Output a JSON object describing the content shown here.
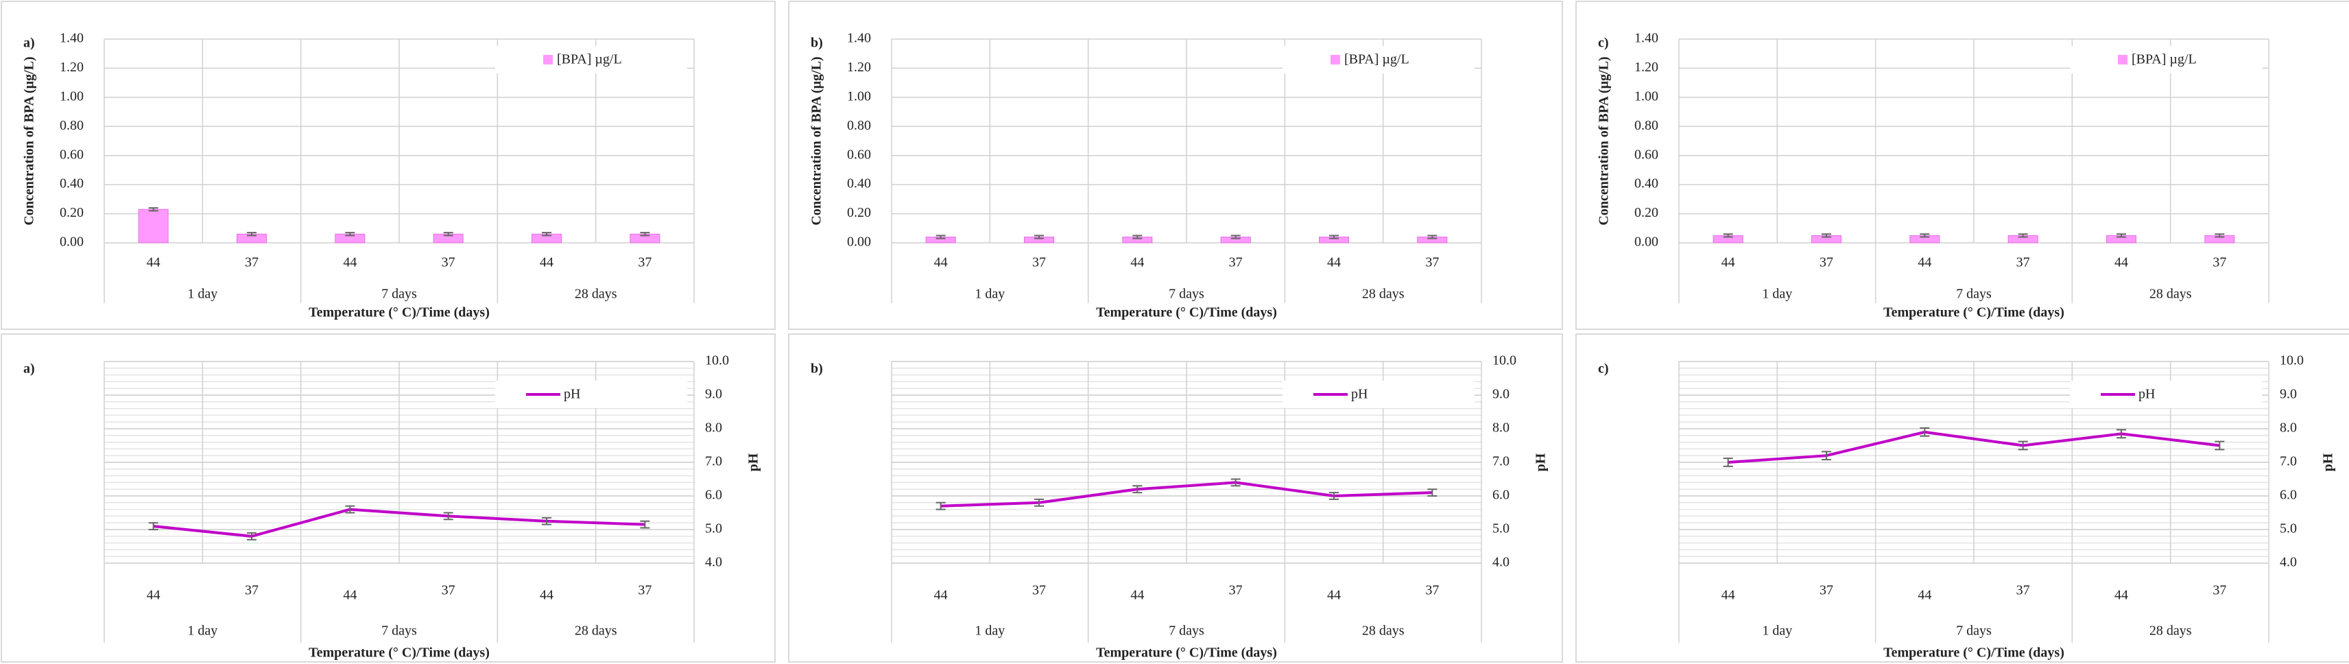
{
  "chart_data": [
    {
      "type": "bar",
      "panel_label": "a)",
      "y_label": "Concentration of BPA (µg/L)",
      "x_label": "Temperature (° C)/Time (days)",
      "categories": [
        "44",
        "37",
        "44",
        "37",
        "44",
        "37"
      ],
      "groups": [
        "1 day",
        "7 days",
        "28 days"
      ],
      "series": [
        {
          "name": "[BPA] µg/L",
          "color": "#ff99ff",
          "values": [
            0.23,
            0.06,
            0.06,
            0.06,
            0.06,
            0.06
          ],
          "errors": [
            0.01,
            0.01,
            0.01,
            0.01,
            0.01,
            0.01
          ]
        }
      ],
      "ylim": [
        0,
        1.4
      ],
      "yticks": [
        {
          "value": 0,
          "label": "0.00"
        },
        {
          "value": 0.2,
          "label": "0.20"
        },
        {
          "value": 0.4,
          "label": "0.40"
        },
        {
          "value": 0.6,
          "label": "0.60"
        },
        {
          "value": 0.8,
          "label": "0.80"
        },
        {
          "value": 1,
          "label": "1.00"
        },
        {
          "value": 1.2,
          "label": "1.20"
        },
        {
          "value": 1.4,
          "label": "1.40"
        }
      ],
      "grid": true,
      "legend": "upper right"
    },
    {
      "type": "bar",
      "panel_label": "b)",
      "y_label": "Concentration of BPA (µg/L)",
      "x_label": "Temperature (° C)/Time (days)",
      "categories": [
        "44",
        "37",
        "44",
        "37",
        "44",
        "37"
      ],
      "groups": [
        "1 day",
        "7 days",
        "28 days"
      ],
      "series": [
        {
          "name": "[BPA] µg/L",
          "color": "#ff99ff",
          "values": [
            0.04,
            0.04,
            0.04,
            0.04,
            0.04,
            0.04
          ],
          "errors": [
            0.01,
            0.01,
            0.01,
            0.01,
            0.01,
            0.01
          ]
        }
      ],
      "ylim": [
        0,
        1.4
      ],
      "yticks": [
        {
          "value": 0,
          "label": "0.00"
        },
        {
          "value": 0.2,
          "label": "0.20"
        },
        {
          "value": 0.4,
          "label": "0.40"
        },
        {
          "value": 0.6,
          "label": "0.60"
        },
        {
          "value": 0.8,
          "label": "0.80"
        },
        {
          "value": 1,
          "label": "1.00"
        },
        {
          "value": 1.2,
          "label": "1.20"
        },
        {
          "value": 1.4,
          "label": "1.40"
        }
      ],
      "grid": true,
      "legend": "upper right"
    },
    {
      "type": "bar",
      "panel_label": "c)",
      "y_label": "Concentration of BPA (µg/L)",
      "x_label": "Temperature (° C)/Time (days)",
      "categories": [
        "44",
        "37",
        "44",
        "37",
        "44",
        "37"
      ],
      "groups": [
        "1 day",
        "7 days",
        "28 days"
      ],
      "series": [
        {
          "name": "[BPA] µg/L",
          "color": "#ff99ff",
          "values": [
            0.05,
            0.05,
            0.05,
            0.05,
            0.05,
            0.05
          ],
          "errors": [
            0.01,
            0.01,
            0.01,
            0.01,
            0.01,
            0.01
          ]
        }
      ],
      "ylim": [
        0,
        1.4
      ],
      "yticks": [
        {
          "value": 0,
          "label": "0.00"
        },
        {
          "value": 0.2,
          "label": "0.20"
        },
        {
          "value": 0.4,
          "label": "0.40"
        },
        {
          "value": 0.6,
          "label": "0.60"
        },
        {
          "value": 0.8,
          "label": "0.80"
        },
        {
          "value": 1,
          "label": "1.00"
        },
        {
          "value": 1.2,
          "label": "1.20"
        },
        {
          "value": 1.4,
          "label": "1.40"
        }
      ],
      "grid": true,
      "legend": "upper right"
    },
    {
      "type": "line",
      "panel_label": "a)",
      "y_label": "pH",
      "x_label": "Temperature (° C)/Time (days)",
      "categories": [
        "44",
        "37",
        "44",
        "37",
        "44",
        "37"
      ],
      "groups": [
        "1 day",
        "7 days",
        "28 days"
      ],
      "series": [
        {
          "name": "pH",
          "color": "#c000c8",
          "values": [
            5.1,
            4.8,
            5.6,
            5.4,
            5.25,
            5.15
          ],
          "errors": [
            0.1,
            0.1,
            0.1,
            0.1,
            0.1,
            0.1
          ]
        }
      ],
      "ylim": [
        4,
        10
      ],
      "yticks": [
        {
          "value": 4,
          "label": "4.0"
        },
        {
          "value": 5,
          "label": "5.0"
        },
        {
          "value": 6,
          "label": "6.0"
        },
        {
          "value": 7,
          "label": "7.0"
        },
        {
          "value": 8,
          "label": "8.0"
        },
        {
          "value": 9,
          "label": "9.0"
        },
        {
          "value": 10,
          "label": "10.0"
        }
      ],
      "grid": "minor",
      "legend": "upper right"
    },
    {
      "type": "line",
      "panel_label": "b)",
      "y_label": "pH",
      "x_label": "Temperature (° C)/Time (days)",
      "categories": [
        "44",
        "37",
        "44",
        "37",
        "44",
        "37"
      ],
      "groups": [
        "1 day",
        "7 days",
        "28 days"
      ],
      "series": [
        {
          "name": "pH",
          "color": "#c000c8",
          "values": [
            5.7,
            5.8,
            6.2,
            6.4,
            6.0,
            6.1
          ],
          "errors": [
            0.1,
            0.1,
            0.1,
            0.1,
            0.1,
            0.1
          ]
        }
      ],
      "ylim": [
        4,
        10
      ],
      "yticks": [
        {
          "value": 4,
          "label": "4.0"
        },
        {
          "value": 5,
          "label": "5.0"
        },
        {
          "value": 6,
          "label": "6.0"
        },
        {
          "value": 7,
          "label": "7.0"
        },
        {
          "value": 8,
          "label": "8.0"
        },
        {
          "value": 9,
          "label": "9.0"
        },
        {
          "value": 10,
          "label": "10.0"
        }
      ],
      "grid": "minor",
      "legend": "upper right"
    },
    {
      "type": "line",
      "panel_label": "c)",
      "y_label": "pH",
      "x_label": "Temperature (° C)/Time (days)",
      "categories": [
        "44",
        "37",
        "44",
        "37",
        "44",
        "37"
      ],
      "groups": [
        "1 day",
        "7 days",
        "28 days"
      ],
      "series": [
        {
          "name": "pH",
          "color": "#c000c8",
          "values": [
            7.0,
            7.2,
            7.9,
            7.5,
            7.85,
            7.5
          ],
          "errors": [
            0.12,
            0.12,
            0.12,
            0.12,
            0.12,
            0.12
          ]
        }
      ],
      "ylim": [
        4,
        10
      ],
      "yticks": [
        {
          "value": 4,
          "label": "4.0"
        },
        {
          "value": 5,
          "label": "5.0"
        },
        {
          "value": 6,
          "label": "6.0"
        },
        {
          "value": 7,
          "label": "7.0"
        },
        {
          "value": 8,
          "label": "8.0"
        },
        {
          "value": 9,
          "label": "9.0"
        },
        {
          "value": 10,
          "label": "10.0"
        }
      ],
      "grid": "minor",
      "legend": "upper right"
    }
  ]
}
